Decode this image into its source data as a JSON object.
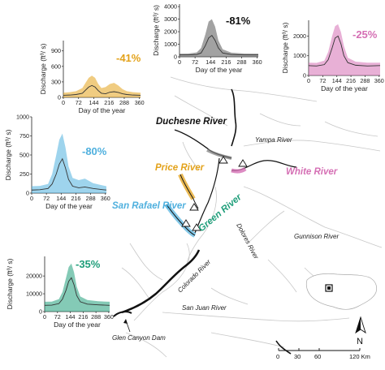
{
  "colors": {
    "orange": "#e3a21a",
    "black": "#111111",
    "pink": "#d56fb4",
    "blue": "#4fb0de",
    "green": "#1f9e7a",
    "median": "#444444",
    "background_river": "#c8c8c8"
  },
  "map": {
    "labels": {
      "duchesne": "Duchesne River",
      "price": "Price River",
      "white": "White River",
      "san_rafael": "San Rafael River",
      "green": "Green River",
      "yampa": "Yampa River",
      "gunnison": "Gunnison River",
      "dolores": "Dolores River",
      "colorado": "Colorado River",
      "san_juan": "San Juan River",
      "glen_canyon_dam": "Glen Canyon Dam"
    },
    "north": "N",
    "scale": {
      "ticks": [
        "0",
        "30",
        "60",
        "120 Km"
      ]
    }
  },
  "chart_data": [
    {
      "type": "area",
      "id": "price",
      "percent_label": "-41%",
      "xlabel": "Day of the year",
      "ylabel": "Discharge (ft³/ s)",
      "xlim": [
        0,
        365
      ],
      "ylim": [
        0,
        1100
      ],
      "x_ticks": [
        "0",
        "72",
        "144",
        "216",
        "288",
        "360"
      ],
      "y_ticks": [
        "0",
        "300",
        "600",
        "900"
      ],
      "color": "#e3a21a",
      "median": [
        [
          0,
          40
        ],
        [
          30,
          45
        ],
        [
          60,
          55
        ],
        [
          90,
          80
        ],
        [
          105,
          140
        ],
        [
          120,
          200
        ],
        [
          135,
          230
        ],
        [
          150,
          200
        ],
        [
          165,
          130
        ],
        [
          180,
          80
        ],
        [
          200,
          70
        ],
        [
          220,
          100
        ],
        [
          240,
          110
        ],
        [
          260,
          95
        ],
        [
          280,
          70
        ],
        [
          300,
          55
        ],
        [
          330,
          45
        ],
        [
          365,
          40
        ]
      ],
      "band_high": [
        [
          0,
          90
        ],
        [
          30,
          100
        ],
        [
          60,
          120
        ],
        [
          90,
          180
        ],
        [
          105,
          280
        ],
        [
          120,
          380
        ],
        [
          135,
          420
        ],
        [
          150,
          380
        ],
        [
          165,
          260
        ],
        [
          180,
          180
        ],
        [
          200,
          200
        ],
        [
          220,
          260
        ],
        [
          240,
          280
        ],
        [
          260,
          230
        ],
        [
          280,
          160
        ],
        [
          300,
          120
        ],
        [
          330,
          100
        ],
        [
          365,
          90
        ]
      ]
    },
    {
      "type": "area",
      "id": "duchesne",
      "percent_label": "-81%",
      "xlabel": "Day of the year",
      "ylabel": "Discharge (ft³/ s)",
      "xlim": [
        0,
        365
      ],
      "ylim": [
        0,
        4200
      ],
      "x_ticks": [
        "0",
        "72",
        "144",
        "216",
        "288",
        "360"
      ],
      "y_ticks": [
        "0",
        "1000",
        "2000",
        "3000",
        "4000"
      ],
      "color": "#555555",
      "median": [
        [
          0,
          150
        ],
        [
          40,
          150
        ],
        [
          80,
          180
        ],
        [
          100,
          300
        ],
        [
          120,
          900
        ],
        [
          135,
          1500
        ],
        [
          150,
          1700
        ],
        [
          165,
          1300
        ],
        [
          180,
          700
        ],
        [
          200,
          300
        ],
        [
          240,
          180
        ],
        [
          300,
          150
        ],
        [
          365,
          150
        ]
      ],
      "band_high": [
        [
          0,
          250
        ],
        [
          40,
          260
        ],
        [
          80,
          350
        ],
        [
          100,
          700
        ],
        [
          120,
          1800
        ],
        [
          135,
          2800
        ],
        [
          150,
          3000
        ],
        [
          165,
          2400
        ],
        [
          180,
          1300
        ],
        [
          200,
          600
        ],
        [
          240,
          330
        ],
        [
          300,
          260
        ],
        [
          365,
          250
        ]
      ]
    },
    {
      "type": "area",
      "id": "white",
      "percent_label": "-25%",
      "xlabel": "Day of the year",
      "ylabel": "Discharge (ft³/ s)",
      "xlim": [
        0,
        365
      ],
      "ylim": [
        0,
        2800
      ],
      "x_ticks": [
        "0",
        "72",
        "144",
        "216",
        "288",
        "360"
      ],
      "y_ticks": [
        "0",
        "1000",
        "2000"
      ],
      "color": "#d56fb4",
      "median": [
        [
          0,
          500
        ],
        [
          40,
          480
        ],
        [
          80,
          550
        ],
        [
          100,
          800
        ],
        [
          120,
          1400
        ],
        [
          135,
          1900
        ],
        [
          150,
          2000
        ],
        [
          165,
          1600
        ],
        [
          180,
          1000
        ],
        [
          200,
          650
        ],
        [
          240,
          520
        ],
        [
          300,
          480
        ],
        [
          365,
          500
        ]
      ],
      "band_high": [
        [
          0,
          650
        ],
        [
          40,
          640
        ],
        [
          80,
          750
        ],
        [
          100,
          1200
        ],
        [
          120,
          2000
        ],
        [
          135,
          2500
        ],
        [
          150,
          2600
        ],
        [
          165,
          2200
        ],
        [
          180,
          1500
        ],
        [
          200,
          900
        ],
        [
          240,
          700
        ],
        [
          300,
          650
        ],
        [
          365,
          650
        ]
      ]
    },
    {
      "type": "area",
      "id": "san_rafael",
      "percent_label": "-80%",
      "xlabel": "Day of the year",
      "ylabel": "Discharge (ft³/ s)",
      "xlim": [
        0,
        365
      ],
      "ylim": [
        0,
        1000
      ],
      "x_ticks": [
        "0",
        "72",
        "144",
        "216",
        "288",
        "360"
      ],
      "y_ticks": [
        "0",
        "250",
        "500",
        "750",
        "1000"
      ],
      "color": "#4fb0de",
      "median": [
        [
          0,
          40
        ],
        [
          40,
          45
        ],
        [
          80,
          60
        ],
        [
          100,
          120
        ],
        [
          120,
          250
        ],
        [
          135,
          380
        ],
        [
          150,
          450
        ],
        [
          165,
          330
        ],
        [
          180,
          180
        ],
        [
          200,
          90
        ],
        [
          230,
          70
        ],
        [
          260,
          80
        ],
        [
          300,
          60
        ],
        [
          365,
          40
        ]
      ],
      "band_high": [
        [
          0,
          90
        ],
        [
          40,
          95
        ],
        [
          80,
          120
        ],
        [
          100,
          250
        ],
        [
          120,
          500
        ],
        [
          135,
          700
        ],
        [
          150,
          780
        ],
        [
          165,
          600
        ],
        [
          180,
          350
        ],
        [
          200,
          200
        ],
        [
          230,
          170
        ],
        [
          260,
          190
        ],
        [
          300,
          130
        ],
        [
          365,
          90
        ]
      ]
    },
    {
      "type": "area",
      "id": "green",
      "percent_label": "-35%",
      "xlabel": "Day of the year",
      "ylabel": "Discharge (ft³/ s)",
      "xlim": [
        0,
        365
      ],
      "ylim": [
        0,
        31000
      ],
      "x_ticks": [
        "0",
        "72",
        "144",
        "216",
        "288",
        "360"
      ],
      "y_ticks": [
        "0",
        "10000",
        "20000"
      ],
      "color": "#1f9e7a",
      "median": [
        [
          0,
          3500
        ],
        [
          40,
          3600
        ],
        [
          80,
          4500
        ],
        [
          100,
          7000
        ],
        [
          120,
          12000
        ],
        [
          135,
          17000
        ],
        [
          150,
          19000
        ],
        [
          165,
          15000
        ],
        [
          180,
          9000
        ],
        [
          200,
          5500
        ],
        [
          240,
          4200
        ],
        [
          300,
          3800
        ],
        [
          365,
          3500
        ]
      ],
      "band_high": [
        [
          0,
          5500
        ],
        [
          40,
          5600
        ],
        [
          80,
          7000
        ],
        [
          100,
          11000
        ],
        [
          120,
          19000
        ],
        [
          135,
          25000
        ],
        [
          150,
          27000
        ],
        [
          165,
          22000
        ],
        [
          180,
          14000
        ],
        [
          200,
          8500
        ],
        [
          240,
          6500
        ],
        [
          300,
          5800
        ],
        [
          365,
          5500
        ]
      ]
    }
  ]
}
